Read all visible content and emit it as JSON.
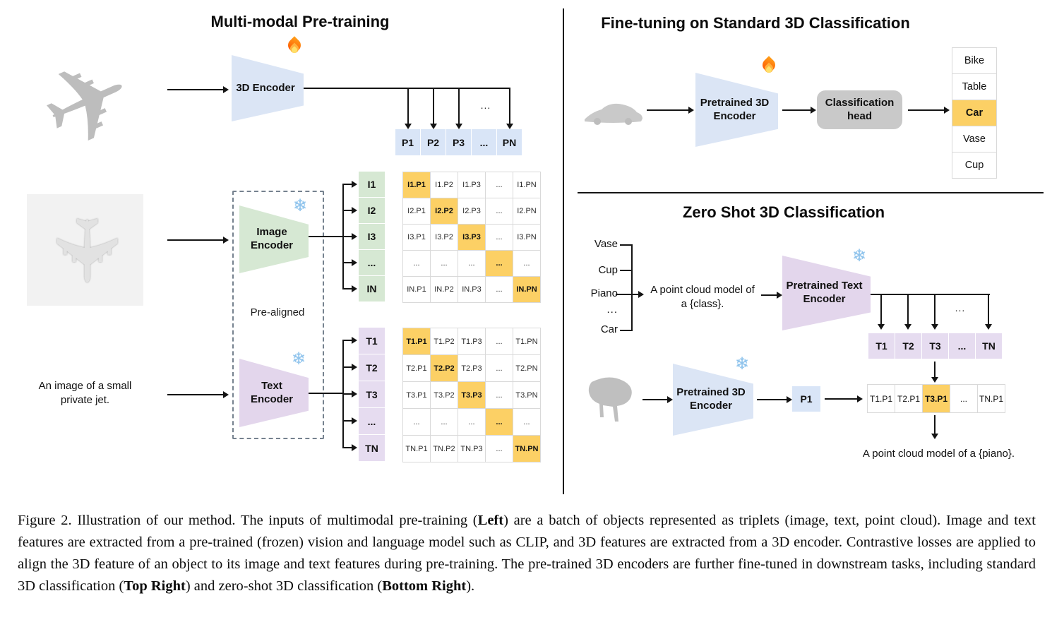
{
  "icons": {
    "snowflake_glyph": "❄",
    "airplane_glyph": "✈",
    "fire": "fire-icon",
    "snowflake": "snowflake-icon"
  },
  "colors": {
    "highlight_orange": "#fcd065",
    "encoder_blue": "#dbe5f5",
    "encoder_green": "#d6e8d3",
    "encoder_purple": "#e3d6ec",
    "cell_blue": "#d9e5f7",
    "label_purple": "#e6dcf0",
    "head_gray": "#c9c9c9",
    "grid_gray": "#d9d9d9"
  },
  "left": {
    "title": "Multi-modal Pre-training",
    "encoder3d_label": "3D Encoder",
    "image_encoder_label": "Image\nEncoder",
    "text_encoder_label": "Text\nEncoder",
    "pre_aligned": "Pre-aligned",
    "text_input": "An image of a small\nprivate jet.",
    "ellipsis": "...",
    "p_row": [
      "P1",
      "P2",
      "P3",
      "...",
      "PN"
    ],
    "image_rows": [
      "I1",
      "I2",
      "I3",
      "...",
      "IN"
    ],
    "text_rows": [
      "T1",
      "T2",
      "T3",
      "...",
      "TN"
    ],
    "image_matrix": [
      [
        "I1.P1",
        "I1.P2",
        "I1.P3",
        "...",
        "I1.PN"
      ],
      [
        "I2.P1",
        "I2.P2",
        "I2.P3",
        "...",
        "I2.PN"
      ],
      [
        "I3.P1",
        "I3.P2",
        "I3.P3",
        "...",
        "I3.PN"
      ],
      [
        "...",
        "...",
        "...",
        "...",
        "..."
      ],
      [
        "IN.P1",
        "IN.P2",
        "IN.P3",
        "...",
        "IN.PN"
      ]
    ],
    "text_matrix": [
      [
        "T1.P1",
        "T1.P2",
        "T1.P3",
        "...",
        "T1.PN"
      ],
      [
        "T2.P1",
        "T2.P2",
        "T2.P3",
        "...",
        "T2.PN"
      ],
      [
        "T3.P1",
        "T3.P2",
        "T3.P3",
        "...",
        "T3.PN"
      ],
      [
        "...",
        "...",
        "...",
        "...",
        "..."
      ],
      [
        "TN.P1",
        "TN.P2",
        "TN.P3",
        "...",
        "TN.PN"
      ]
    ]
  },
  "fine_tuning": {
    "title": "Fine-tuning on Standard 3D Classification",
    "encoder_label": "Pretrained 3D\nEncoder",
    "head_label": "Classification\nhead",
    "classes": [
      "Bike",
      "Table",
      "Car",
      "Vase",
      "Cup"
    ],
    "predicted_class": "Car",
    "predicted_index": 2
  },
  "zero_shot": {
    "title": "Zero Shot 3D Classification",
    "classes": [
      "Vase",
      "Cup",
      "Piano",
      "...",
      "Car"
    ],
    "prompt": "A point cloud model of\na {class}.",
    "text_encoder_label": "Pretrained Text\nEncoder",
    "encoder_label": "Pretrained 3D\nEncoder",
    "p_box": "P1",
    "t_row": [
      "T1",
      "T2",
      "T3",
      "...",
      "TN"
    ],
    "match_row": [
      "T1.P1",
      "T2.P1",
      "T3.P1",
      "...",
      "TN.P1"
    ],
    "match_highlight_index": 2,
    "highlighted_match": "T3.P1",
    "result": "A point cloud model of a {piano}.",
    "ellipsis": "..."
  },
  "caption": {
    "segments": [
      {
        "text": "Figure 2. Illustration of our method. The inputs of multimodal pre-training (",
        "bold": false
      },
      {
        "text": "Left",
        "bold": true
      },
      {
        "text": ") are a batch of objects represented as triplets (image, text, point cloud). Image and text features are extracted from a pre-trained (frozen) vision and language model such as CLIP, and 3D features are extracted from a 3D encoder. Contrastive losses are applied to align the 3D feature of an object to its image and text features during pre-training. The pre-trained 3D encoders are further fine-tuned in downstream tasks, including standard 3D classification (",
        "bold": false
      },
      {
        "text": "Top Right",
        "bold": true
      },
      {
        "text": ") and zero-shot 3D classification (",
        "bold": false
      },
      {
        "text": "Bottom Right",
        "bold": true
      },
      {
        "text": ").",
        "bold": false
      }
    ]
  }
}
